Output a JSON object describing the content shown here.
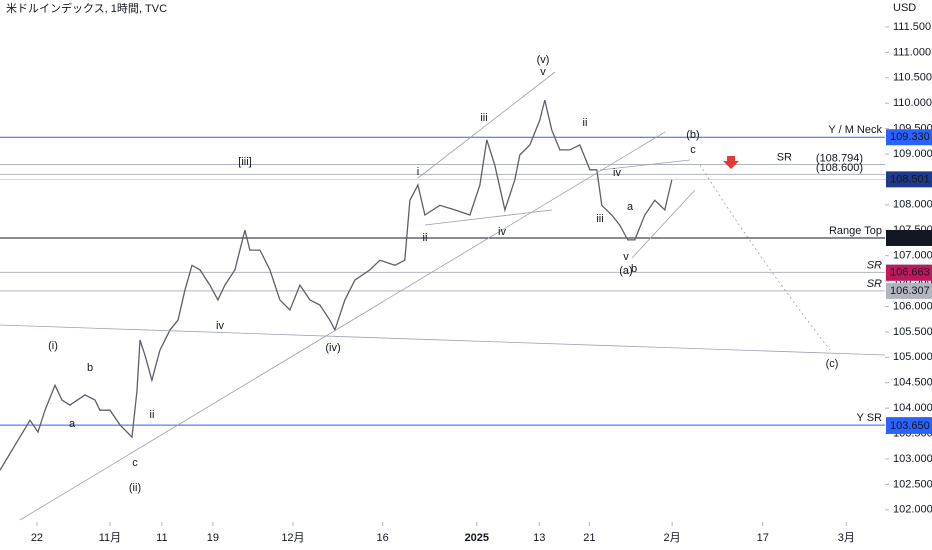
{
  "chart_data": {
    "type": "line",
    "title": "米ドルインデックス, 1時間, TVC",
    "y_unit": "USD",
    "x": [
      0,
      2.05,
      3.41,
      4.32,
      5.11,
      6.25,
      7.05,
      7.95,
      9.66,
      10.8,
      11.36,
      12.5,
      13.64,
      15,
      15.57,
      15.91,
      16.48,
      17.27,
      18.18,
      19.32,
      20.23,
      21.02,
      21.82,
      22.73,
      23.86,
      24.77,
      25.57,
      26.7,
      27.84,
      28.41,
      29.55,
      30.68,
      31.82,
      32.95,
      34.09,
      35.23,
      36.36,
      37.5,
      38.07,
      39.2,
      40.34,
      42.05,
      43.18,
      44.89,
      46.02,
      46.59,
      47.5,
      48.3,
      50,
      51.7,
      53.41,
      54.55,
      55.34,
      56.25,
      57.39,
      58.52,
      59.09,
      60.23,
      61.36,
      61.93,
      62.73,
      63.64,
      64.77,
      65.91,
      67.05,
      67.84,
      68.41,
      69.55,
      70.45,
      71.36,
      72.16,
      73.3,
      74.43,
      75.57,
      76.36
    ],
    "series": [
      {
        "color": "#5d606b",
        "values": [
          102.78,
          103.37,
          103.76,
          103.53,
          103.96,
          104.45,
          104.16,
          104.06,
          104.26,
          104.16,
          103.96,
          103.96,
          103.67,
          103.43,
          104.35,
          105.34,
          105.04,
          104.55,
          105.14,
          105.54,
          105.73,
          106.32,
          106.81,
          106.72,
          106.42,
          106.13,
          106.42,
          106.72,
          107.5,
          107.11,
          107.11,
          106.72,
          106.13,
          105.93,
          106.42,
          106.13,
          106.03,
          105.73,
          105.54,
          106.13,
          106.52,
          106.72,
          106.91,
          106.81,
          106.91,
          108.09,
          108.39,
          107.8,
          107.99,
          107.9,
          107.8,
          108.39,
          109.28,
          108.78,
          107.9,
          108.49,
          108.98,
          109.18,
          109.67,
          110.06,
          109.47,
          109.08,
          109.08,
          109.18,
          108.69,
          108.69,
          107.99,
          107.8,
          107.6,
          107.31,
          107.31,
          107.8,
          108.09,
          107.9,
          108.49
        ]
      }
    ],
    "xlim": [
      0,
      100.6
    ],
    "xticks": [
      {
        "value": 4.2,
        "label": "22"
      },
      {
        "value": 12.5,
        "label": "11月"
      },
      {
        "value": 18.4,
        "label": "11"
      },
      {
        "value": 24.2,
        "label": "19"
      },
      {
        "value": 33.3,
        "label": "12月"
      },
      {
        "value": 43.5,
        "label": "16"
      },
      {
        "value": 54.2,
        "label": "2025"
      },
      {
        "value": 61.3,
        "label": "13"
      },
      {
        "value": 67,
        "label": "21"
      },
      {
        "value": 76.4,
        "label": "2月"
      },
      {
        "value": 86.7,
        "label": "17"
      },
      {
        "value": 96.2,
        "label": "3月"
      }
    ],
    "ylim": [
      101.76,
      112.03
    ],
    "yticks": [
      {
        "value": 102,
        "label": "102.000"
      },
      {
        "value": 102.5,
        "label": "102.500"
      },
      {
        "value": 103,
        "label": "103.000"
      },
      {
        "value": 103.5,
        "label": "103.500"
      },
      {
        "value": 104,
        "label": "104.000"
      },
      {
        "value": 104.5,
        "label": "104.500"
      },
      {
        "value": 105,
        "label": "105.000"
      },
      {
        "value": 105.5,
        "label": "105.500"
      },
      {
        "value": 106,
        "label": "106.000"
      },
      {
        "value": 106.5,
        "label": "106.500"
      },
      {
        "value": 107,
        "label": "107.000"
      },
      {
        "value": 107.5,
        "label": "107.500"
      },
      {
        "value": 108,
        "label": "108.000"
      },
      {
        "value": 108.5,
        "label": "108.500"
      },
      {
        "value": 109,
        "label": "109.000"
      },
      {
        "value": 109.5,
        "label": "109.500"
      },
      {
        "value": 110,
        "label": "110.000"
      },
      {
        "value": 110.5,
        "label": "110.500"
      },
      {
        "value": 111,
        "label": "111.000"
      },
      {
        "value": 111.5,
        "label": "111.500"
      }
    ],
    "levels": [
      {
        "name": "Y / M Neck",
        "value": 109.33,
        "value_label": "109.330",
        "color": "#2962ff",
        "badge": "#2962ff"
      },
      {
        "name": "SR",
        "value": 108.794,
        "value_label": "(108.794)",
        "color": "#b2b5be"
      },
      {
        "value": 108.6,
        "value_label": "(108.600)",
        "color": "#b2b5be"
      },
      {
        "value": 108.501,
        "value_label": "108.501",
        "color": "#d1d4dc",
        "badge": "#1e3a8a"
      },
      {
        "name": "Range Top",
        "value": 107.348,
        "value_label": "107.348",
        "color": "#131722",
        "badge": "#131722"
      },
      {
        "name": "SR",
        "value": 106.67,
        "value_label": "106.670",
        "color": "#b2b5be",
        "badge": "#ffffff"
      },
      {
        "value": 106.663,
        "value_label": "106.663",
        "badge": "#c2185b"
      },
      {
        "name": "SR",
        "value": 106.307,
        "value_label": "106.307",
        "color": "#b2b5be",
        "badge": "#b2b5be"
      },
      {
        "name": "Y SR",
        "value": 103.666,
        "value_label": "103.666",
        "color": "#2962ff",
        "badge": "#2962ff"
      },
      {
        "value": 103.65,
        "value_label": "103.650",
        "badge": "#2962ff"
      }
    ],
    "annotations": [
      "(i)",
      "[iii]",
      "(ii)",
      "(iv)",
      "(v)",
      "(a)",
      "(b)",
      "(c)",
      "i",
      "ii",
      "iii",
      "iv",
      "v",
      "ii",
      "iv",
      "iii",
      "v",
      "b",
      "c",
      "a",
      "iv",
      "ii",
      "b",
      "a",
      "c"
    ]
  }
}
